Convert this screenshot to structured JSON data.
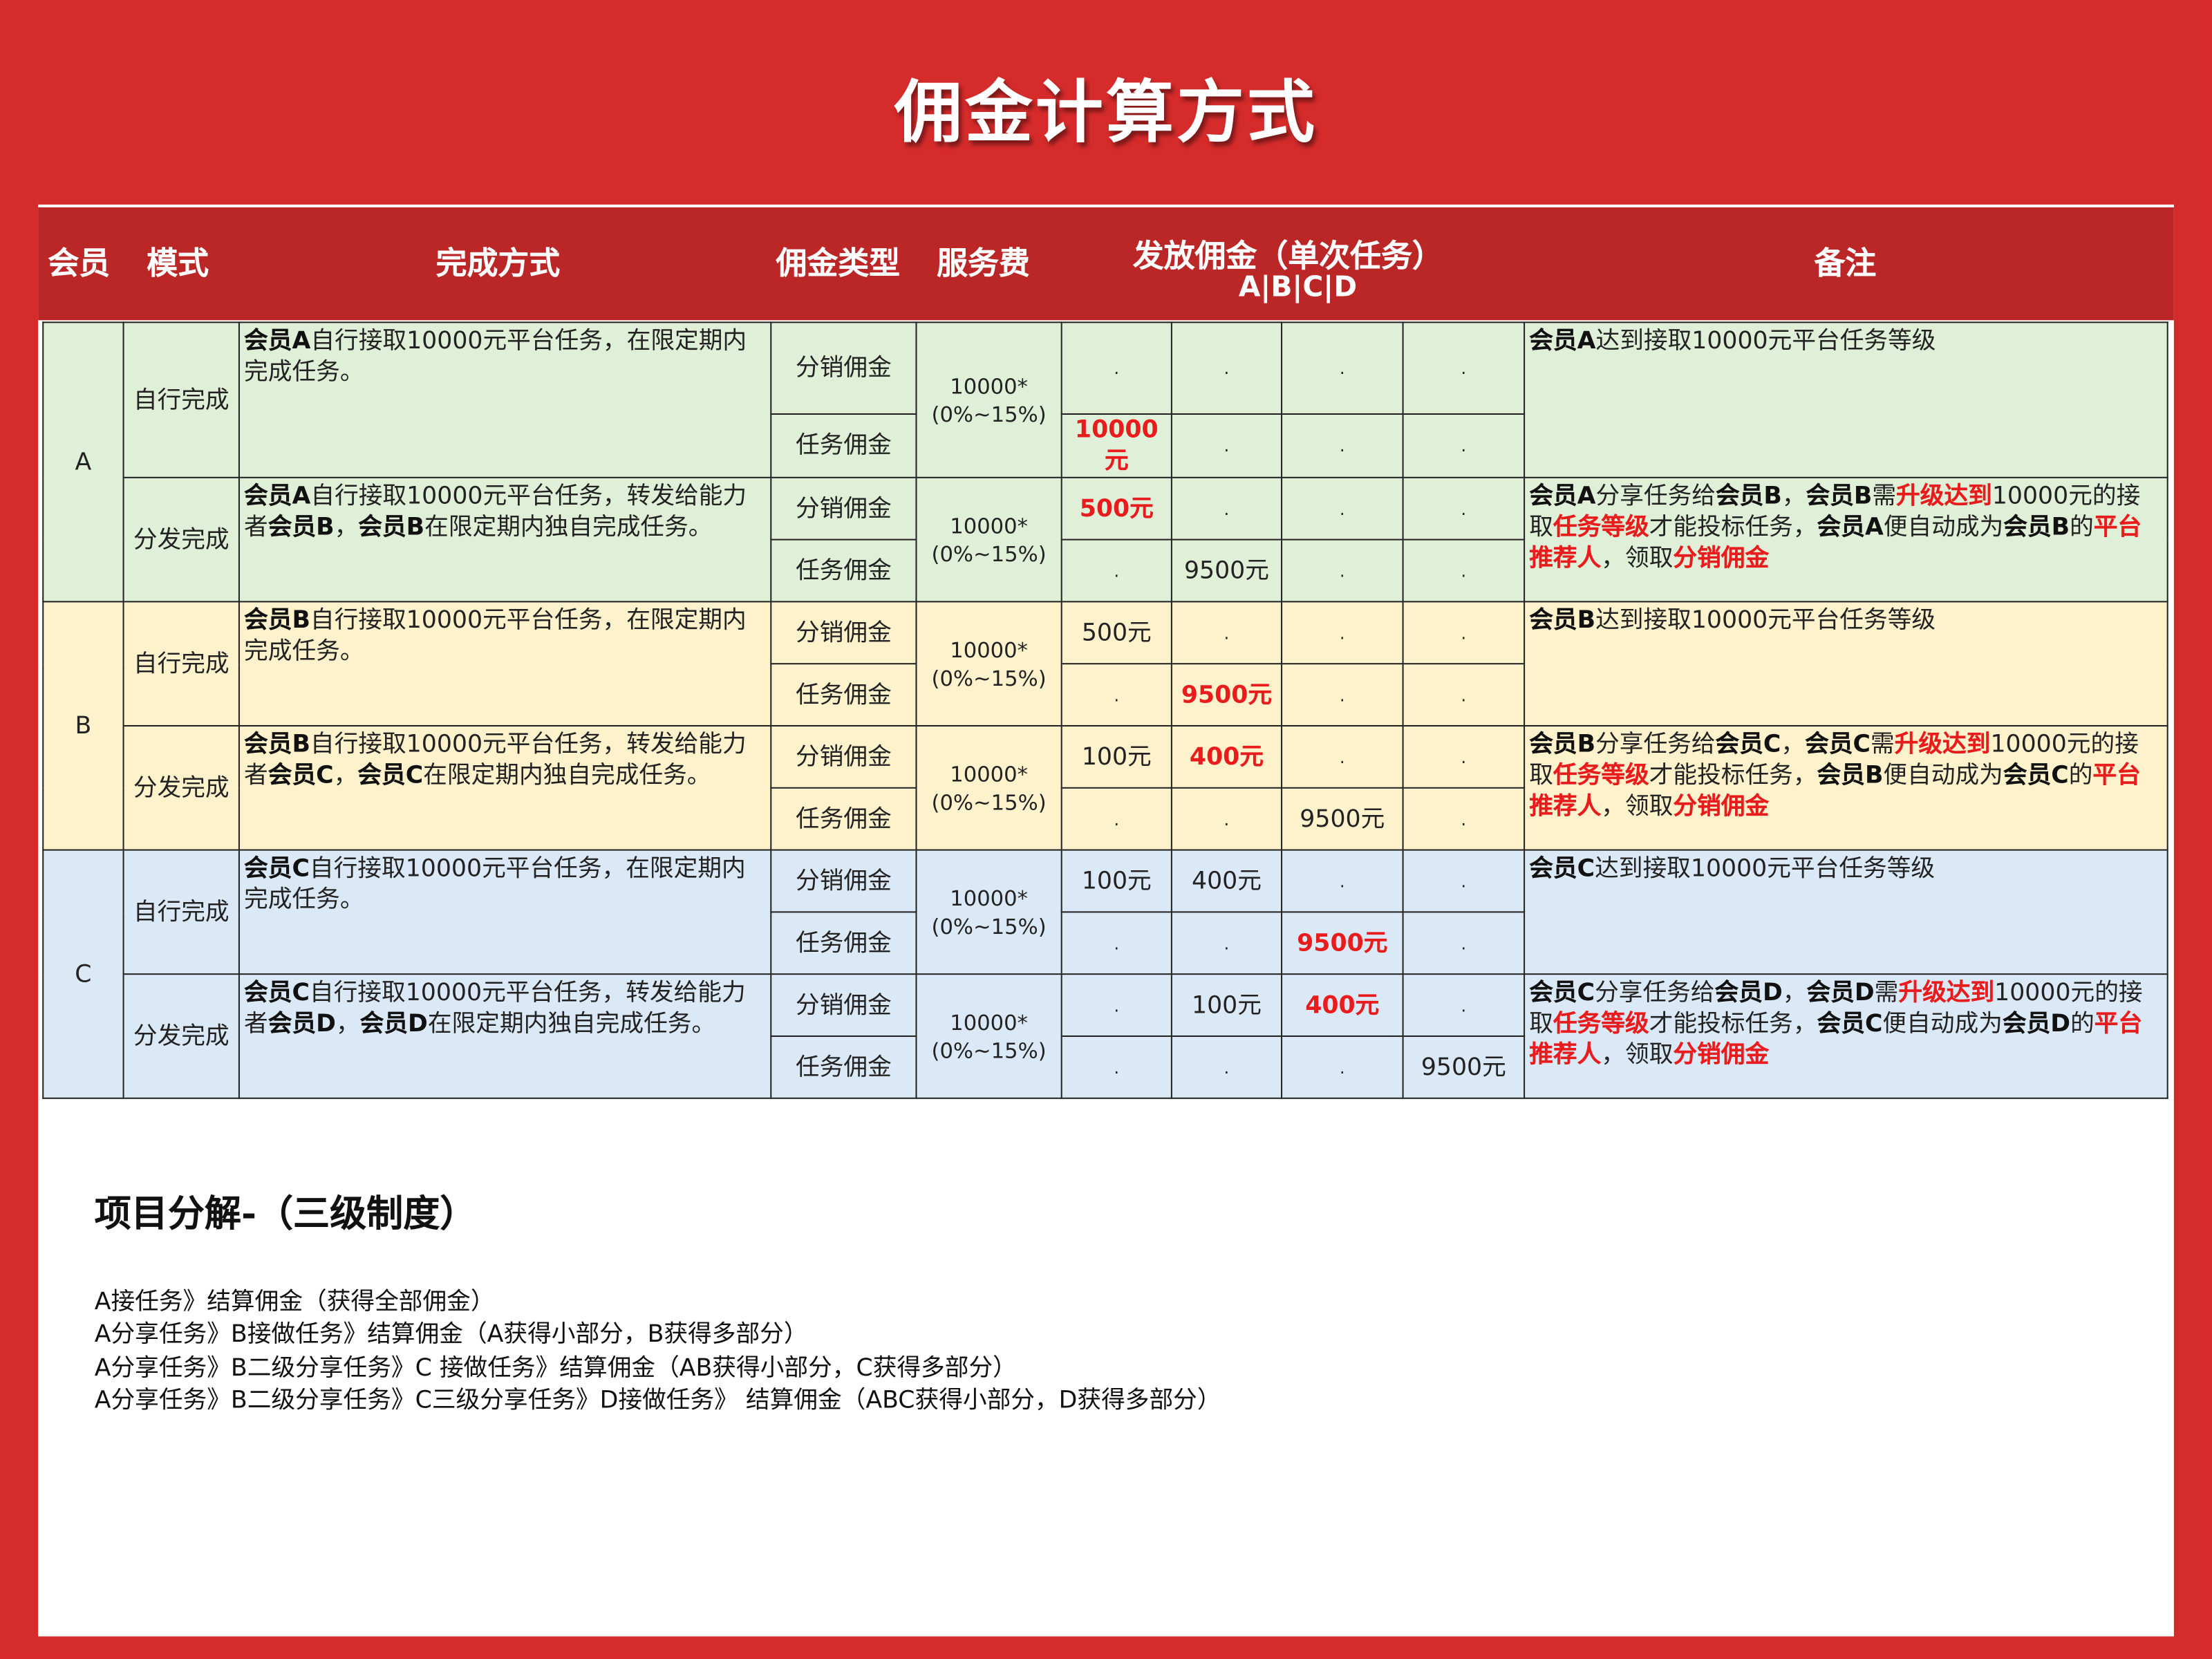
{
  "title": "佣金计算方式",
  "colors": {
    "background_red": "#d62b2b",
    "header_red": "#bb2626",
    "group_a": "#e0f0d8",
    "group_b": "#fdf2cc",
    "group_c": "#dbe9f6",
    "highlight_red": "#e81c1c"
  },
  "header": {
    "member": "会员",
    "mode": "模式",
    "method": "完成方式",
    "commission_type": "佣金类型",
    "service_fee": "服务费",
    "payout": "发放佣金（单次任务）",
    "payout_sub": "A|B|C|D",
    "notes": "备注"
  },
  "groups": [
    {
      "member": "A",
      "color": "g",
      "modes": [
        {
          "mode": "自行完成",
          "method": [
            {
              "t": "会员A",
              "s": "b"
            },
            {
              "t": "自行接取10000元平台任务，在限定期内完成任务。"
            }
          ],
          "fee": [
            "10000*",
            "(0%~15%)"
          ],
          "rows": [
            {
              "type": "分销佣金",
              "vals": [
                {
                  "v": "."
                },
                {
                  "v": "."
                },
                {
                  "v": "."
                },
                {
                  "v": "."
                }
              ]
            },
            {
              "type": "任务佣金",
              "vals": [
                {
                  "v": "10000元",
                  "red": true
                },
                {
                  "v": "."
                },
                {
                  "v": "."
                },
                {
                  "v": "."
                }
              ]
            }
          ],
          "note": [
            {
              "t": "会员A",
              "s": "b"
            },
            {
              "t": "达到接取10000元平台任务等级"
            }
          ]
        },
        {
          "mode": "分发完成",
          "method": [
            {
              "t": "会员A",
              "s": "b"
            },
            {
              "t": "自行接取10000元平台任务，转发给能力者"
            },
            {
              "t": "会员B",
              "s": "b"
            },
            {
              "t": "，"
            },
            {
              "t": "会员B",
              "s": "b"
            },
            {
              "t": "在限定期内独自完成任务。"
            }
          ],
          "fee": [
            "10000*",
            "(0%~15%)"
          ],
          "rows": [
            {
              "type": "分销佣金",
              "vals": [
                {
                  "v": "500元",
                  "red": true
                },
                {
                  "v": "."
                },
                {
                  "v": "."
                },
                {
                  "v": "."
                }
              ]
            },
            {
              "type": "任务佣金",
              "vals": [
                {
                  "v": "."
                },
                {
                  "v": "9500元"
                },
                {
                  "v": "."
                },
                {
                  "v": "."
                }
              ]
            }
          ],
          "note": [
            {
              "t": "会员A",
              "s": "b"
            },
            {
              "t": "分享任务给"
            },
            {
              "t": "会员B",
              "s": "b"
            },
            {
              "t": "，"
            },
            {
              "t": "会员B",
              "s": "b"
            },
            {
              "t": "需"
            },
            {
              "t": "升级达到",
              "s": "r"
            },
            {
              "t": "10000元的接取"
            },
            {
              "t": "任务等级",
              "s": "r"
            },
            {
              "t": "才能投标任务，"
            },
            {
              "t": "会员A",
              "s": "b"
            },
            {
              "t": "便自动成为"
            },
            {
              "t": "会员B",
              "s": "b"
            },
            {
              "t": "的"
            },
            {
              "t": "平台推荐人",
              "s": "r"
            },
            {
              "t": "，领取"
            },
            {
              "t": "分销佣金",
              "s": "r"
            }
          ]
        }
      ]
    },
    {
      "member": "B",
      "color": "y",
      "modes": [
        {
          "mode": "自行完成",
          "method": [
            {
              "t": "会员B",
              "s": "b"
            },
            {
              "t": "自行接取10000元平台任务，在限定期内完成任务。"
            }
          ],
          "fee": [
            "10000*",
            "(0%~15%)"
          ],
          "rows": [
            {
              "type": "分销佣金",
              "vals": [
                {
                  "v": "500元"
                },
                {
                  "v": "."
                },
                {
                  "v": "."
                },
                {
                  "v": "."
                }
              ]
            },
            {
              "type": "任务佣金",
              "vals": [
                {
                  "v": "."
                },
                {
                  "v": "9500元",
                  "red": true
                },
                {
                  "v": "."
                },
                {
                  "v": "."
                }
              ]
            }
          ],
          "note": [
            {
              "t": "会员B",
              "s": "b"
            },
            {
              "t": "达到接取10000元平台任务等级"
            }
          ]
        },
        {
          "mode": "分发完成",
          "method": [
            {
              "t": "会员B",
              "s": "b"
            },
            {
              "t": "自行接取10000元平台任务，转发给能力者"
            },
            {
              "t": "会员C",
              "s": "b"
            },
            {
              "t": "，"
            },
            {
              "t": "会员C",
              "s": "b"
            },
            {
              "t": "在限定期内独自完成任务。"
            }
          ],
          "fee": [
            "10000*",
            "(0%~15%)"
          ],
          "rows": [
            {
              "type": "分销佣金",
              "vals": [
                {
                  "v": "100元"
                },
                {
                  "v": "400元",
                  "red": true
                },
                {
                  "v": "."
                },
                {
                  "v": "."
                }
              ]
            },
            {
              "type": "任务佣金",
              "vals": [
                {
                  "v": "."
                },
                {
                  "v": "."
                },
                {
                  "v": "9500元"
                },
                {
                  "v": "."
                }
              ]
            }
          ],
          "note": [
            {
              "t": "会员B",
              "s": "b"
            },
            {
              "t": "分享任务给"
            },
            {
              "t": "会员C",
              "s": "b"
            },
            {
              "t": "，"
            },
            {
              "t": "会员C",
              "s": "b"
            },
            {
              "t": "需"
            },
            {
              "t": "升级达到",
              "s": "r"
            },
            {
              "t": "10000元的接取"
            },
            {
              "t": "任务等级",
              "s": "r"
            },
            {
              "t": "才能投标任务，"
            },
            {
              "t": "会员B",
              "s": "b"
            },
            {
              "t": "便自动成为"
            },
            {
              "t": "会员C",
              "s": "b"
            },
            {
              "t": "的"
            },
            {
              "t": "平台推荐人",
              "s": "r"
            },
            {
              "t": "，领取"
            },
            {
              "t": "分销佣金",
              "s": "r"
            }
          ]
        }
      ]
    },
    {
      "member": "C",
      "color": "bl",
      "modes": [
        {
          "mode": "自行完成",
          "method": [
            {
              "t": "会员C",
              "s": "b"
            },
            {
              "t": "自行接取10000元平台任务，在限定期内完成任务。"
            }
          ],
          "fee": [
            "10000*",
            "(0%~15%)"
          ],
          "rows": [
            {
              "type": "分销佣金",
              "vals": [
                {
                  "v": "100元"
                },
                {
                  "v": "400元"
                },
                {
                  "v": "."
                },
                {
                  "v": "."
                }
              ]
            },
            {
              "type": "任务佣金",
              "vals": [
                {
                  "v": "."
                },
                {
                  "v": "."
                },
                {
                  "v": "9500元",
                  "red": true
                },
                {
                  "v": "."
                }
              ]
            }
          ],
          "note": [
            {
              "t": "会员C",
              "s": "b"
            },
            {
              "t": "达到接取10000元平台任务等级"
            }
          ]
        },
        {
          "mode": "分发完成",
          "method": [
            {
              "t": "会员C",
              "s": "b"
            },
            {
              "t": "自行接取10000元平台任务，转发给能力者"
            },
            {
              "t": "会员D",
              "s": "b"
            },
            {
              "t": "，"
            },
            {
              "t": "会员D",
              "s": "b"
            },
            {
              "t": "在限定期内独自完成任务。"
            }
          ],
          "fee": [
            "10000*",
            "(0%~15%)"
          ],
          "rows": [
            {
              "type": "分销佣金",
              "vals": [
                {
                  "v": "."
                },
                {
                  "v": "100元"
                },
                {
                  "v": "400元",
                  "red": true
                },
                {
                  "v": "."
                }
              ]
            },
            {
              "type": "任务佣金",
              "vals": [
                {
                  "v": "."
                },
                {
                  "v": "."
                },
                {
                  "v": "."
                },
                {
                  "v": "9500元"
                }
              ]
            }
          ],
          "note": [
            {
              "t": "会员C",
              "s": "b"
            },
            {
              "t": "分享任务给"
            },
            {
              "t": "会员D",
              "s": "b"
            },
            {
              "t": "，"
            },
            {
              "t": "会员D",
              "s": "b"
            },
            {
              "t": "需"
            },
            {
              "t": "升级达到",
              "s": "r"
            },
            {
              "t": "10000元的接取"
            },
            {
              "t": "任务等级",
              "s": "r"
            },
            {
              "t": "才能投标任务，"
            },
            {
              "t": "会员C",
              "s": "b"
            },
            {
              "t": "便自动成为"
            },
            {
              "t": "会员D",
              "s": "b"
            },
            {
              "t": "的"
            },
            {
              "t": "平台推荐人",
              "s": "r"
            },
            {
              "t": "，领取"
            },
            {
              "t": "分销佣金",
              "s": "r"
            }
          ]
        }
      ]
    }
  ],
  "breakdown": {
    "title": "项目分解-（三级制度）",
    "lines": [
      "A接任务》结算佣金（获得全部佣金）",
      "A分享任务》B接做任务》结算佣金（A获得小部分，B获得多部分）",
      "A分享任务》B二级分享任务》C 接做任务》结算佣金（AB获得小部分，C获得多部分）",
      "A分享任务》B二级分享任务》C三级分享任务》D接做任务》 结算佣金（ABC获得小部分，D获得多部分）"
    ]
  }
}
